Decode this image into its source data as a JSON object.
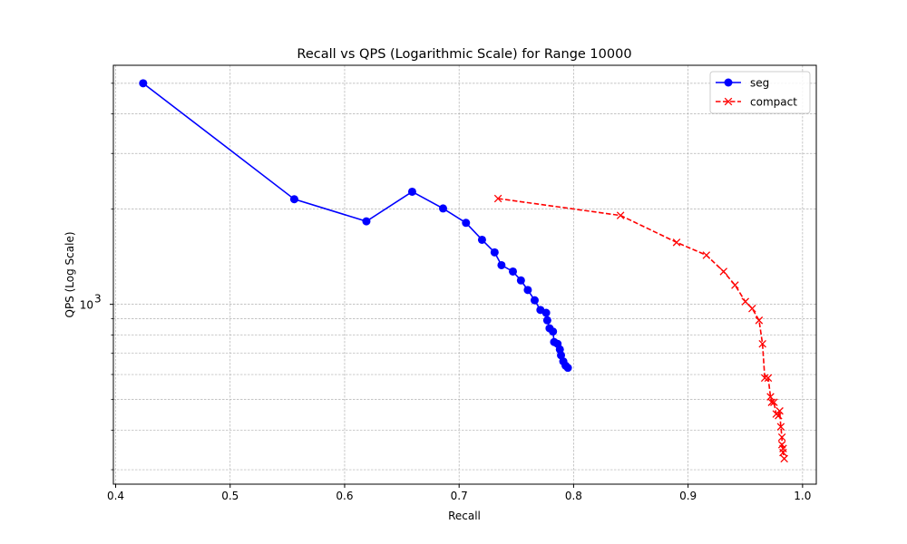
{
  "chart_data": {
    "type": "line",
    "title": "Recall vs QPS (Logarithmic Scale) for Range 10000",
    "xlabel": "Recall",
    "ylabel": "QPS (Log Scale)",
    "xlim": [
      0.398,
      1.012
    ],
    "ylim": [
      270,
      5700
    ],
    "yscale": "log",
    "grid": true,
    "legend_position": "top-right",
    "x_ticks": [
      {
        "value": 0.4,
        "label": "0.4"
      },
      {
        "value": 0.5,
        "label": "0.5"
      },
      {
        "value": 0.6,
        "label": "0.6"
      },
      {
        "value": 0.7,
        "label": "0.7"
      },
      {
        "value": 0.8,
        "label": "0.8"
      },
      {
        "value": 0.9,
        "label": "0.9"
      },
      {
        "value": 1.0,
        "label": "1.0"
      }
    ],
    "y_major_ticks": [
      {
        "value": 1000,
        "label_base": "10",
        "label_exp": "3"
      }
    ],
    "y_minor_ticks": [
      300,
      400,
      500,
      600,
      700,
      800,
      900,
      2000,
      3000,
      4000,
      5000
    ],
    "series": [
      {
        "name": "seg",
        "color": "#0000ff",
        "line_style": "solid",
        "marker": "circle",
        "points": [
          [
            0.424,
            5000
          ],
          [
            0.556,
            2150
          ],
          [
            0.619,
            1830
          ],
          [
            0.659,
            2270
          ],
          [
            0.686,
            2010
          ],
          [
            0.706,
            1810
          ],
          [
            0.72,
            1600
          ],
          [
            0.731,
            1460
          ],
          [
            0.737,
            1330
          ],
          [
            0.747,
            1270
          ],
          [
            0.754,
            1190
          ],
          [
            0.76,
            1110
          ],
          [
            0.766,
            1030
          ],
          [
            0.771,
            960
          ],
          [
            0.776,
            940
          ],
          [
            0.777,
            890
          ],
          [
            0.779,
            840
          ],
          [
            0.782,
            820
          ],
          [
            0.783,
            760
          ],
          [
            0.786,
            750
          ],
          [
            0.788,
            720
          ],
          [
            0.789,
            690
          ],
          [
            0.791,
            660
          ],
          [
            0.793,
            640
          ],
          [
            0.795,
            630
          ]
        ]
      },
      {
        "name": "compact",
        "color": "#ff0000",
        "line_style": "dashed",
        "marker": "x",
        "points": [
          [
            0.734,
            2160
          ],
          [
            0.841,
            1910
          ],
          [
            0.89,
            1570
          ],
          [
            0.916,
            1430
          ],
          [
            0.931,
            1270
          ],
          [
            0.941,
            1150
          ],
          [
            0.95,
            1020
          ],
          [
            0.956,
            970
          ],
          [
            0.962,
            890
          ],
          [
            0.965,
            750
          ],
          [
            0.967,
            585
          ],
          [
            0.97,
            585
          ],
          [
            0.972,
            510
          ],
          [
            0.973,
            490
          ],
          [
            0.975,
            490
          ],
          [
            0.977,
            450
          ],
          [
            0.979,
            445
          ],
          [
            0.98,
            460
          ],
          [
            0.981,
            410
          ],
          [
            0.982,
            380
          ],
          [
            0.982,
            360
          ],
          [
            0.983,
            350
          ],
          [
            0.983,
            340
          ],
          [
            0.984,
            325
          ]
        ]
      }
    ]
  }
}
